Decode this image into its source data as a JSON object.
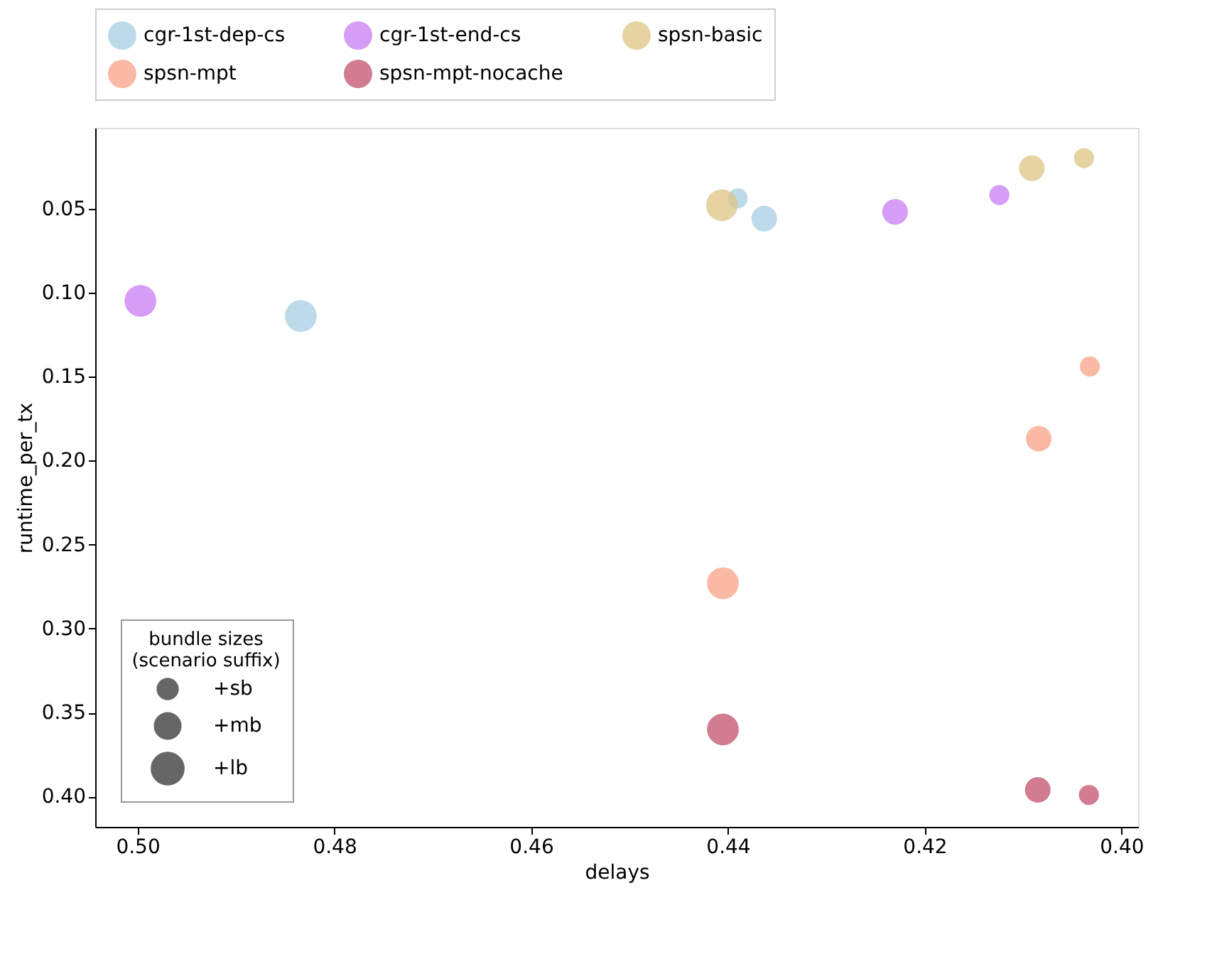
{
  "chart_data": {
    "type": "bubble",
    "xlabel": "delays",
    "ylabel": "runtime_per_tx",
    "legend_title": "bundle sizes\n(scenario suffix)",
    "legend": "top",
    "grid": false,
    "xlim": [
      0.5043,
      0.3983
    ],
    "xticks": [
      {
        "value": 0.5,
        "label": "0.50"
      },
      0.48,
      0.46,
      0.44,
      0.42,
      {
        "value": 0.4,
        "label": "0.40"
      }
    ],
    "ylim": [
      0.418,
      0.002
    ],
    "yticks": [
      0.05,
      {
        "value": 0.1,
        "label": "0.10"
      },
      0.15,
      {
        "value": 0.2,
        "label": "0.20"
      },
      0.25,
      {
        "value": 0.3,
        "label": "0.30"
      },
      0.35,
      {
        "value": 0.4,
        "label": "0.40"
      }
    ],
    "size_legend": [
      {
        "value": 0.4,
        "label": "+sb"
      },
      {
        "value": 0.65,
        "label": "+mb"
      },
      {
        "value": 1,
        "label": "+lb"
      }
    ],
    "series": [
      {
        "name": "cgr-1st-dep-cs",
        "color": "#a6cee3",
        "x": [
          0.439,
          0.4363,
          0.4834
        ],
        "values": [
          0.044,
          0.056,
          0.114
        ],
        "sizes": [
          0.4,
          0.65,
          1
        ]
      },
      {
        "name": "cgr-1st-end-cs",
        "color": "#c77cf2",
        "x": [
          0.4124,
          0.423,
          0.4997
        ],
        "values": [
          0.042,
          0.052,
          0.105
        ],
        "sizes": [
          0.4,
          0.65,
          1
        ]
      },
      {
        "name": "spsn-basic",
        "color": "#dcc483",
        "x": [
          0.4038,
          0.4091,
          0.4406
        ],
        "values": [
          0.02,
          0.026,
          0.048
        ],
        "sizes": [
          0.4,
          0.65,
          1
        ]
      },
      {
        "name": "spsn-mpt",
        "color": "#f8a285",
        "x": [
          0.4032,
          0.4084,
          0.4405
        ],
        "values": [
          0.144,
          0.187,
          0.273
        ],
        "sizes": [
          0.4,
          0.65,
          1
        ]
      },
      {
        "name": "spsn-mpt-nocache",
        "color": "#c2506b",
        "x": [
          0.4033,
          0.4085,
          0.4405
        ],
        "values": [
          0.399,
          0.396,
          0.36
        ],
        "sizes": [
          0.4,
          0.65,
          1
        ]
      }
    ]
  }
}
